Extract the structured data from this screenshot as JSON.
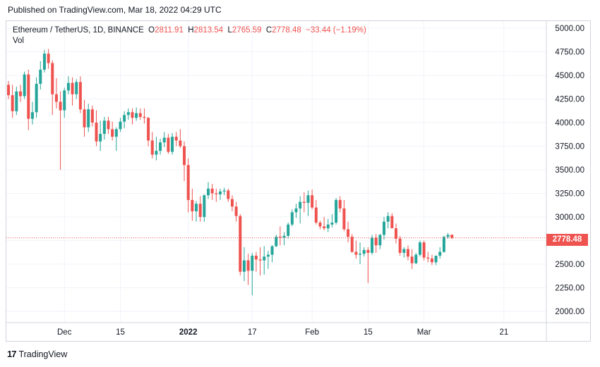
{
  "header": {
    "published": "Published on TradingView.com, Mar 18, 2022 04:29 UTC"
  },
  "legend": {
    "symbol": "Ethereum / TetherUS, 1D, BINANCE",
    "open_label": "O",
    "open": "2811.91",
    "high_label": "H",
    "high": "2813.54",
    "low_label": "L",
    "low": "2765.59",
    "close_label": "C",
    "close": "2778.48",
    "change": "−33.44 (−1.19%)",
    "vol_label": "Vol"
  },
  "last_price_tag": "2778.48",
  "footer": {
    "brand_icon": "17",
    "brand": "TradingView"
  },
  "colors": {
    "up": "#26a69a",
    "down": "#ef5350",
    "grid": "#f0f3fa",
    "axis": "#d1d4dc"
  },
  "chart_data": {
    "type": "candlestick",
    "title": "Ethereum / TetherUS, 1D, BINANCE",
    "ylim": [
      1750,
      5100
    ],
    "y_ticks": [
      "5000.00",
      "4750.00",
      "4500.00",
      "4250.00",
      "4000.00",
      "3750.00",
      "3500.00",
      "3250.00",
      "3000.00",
      "2750.00",
      "2500.00",
      "2250.00",
      "2000.00"
    ],
    "x_ticks": [
      {
        "label": "Dec",
        "index": 14
      },
      {
        "label": "15",
        "index": 28
      },
      {
        "label": "2022",
        "index": 45
      },
      {
        "label": "17",
        "index": 61
      },
      {
        "label": "Feb",
        "index": 76
      },
      {
        "label": "15",
        "index": 90
      },
      {
        "label": "Mar",
        "index": 104
      },
      {
        "label": "21",
        "index": 124
      }
    ],
    "last_price": 2778.48,
    "candles": [
      [
        4400,
        4440,
        4250,
        4290
      ],
      [
        4290,
        4400,
        4050,
        4120
      ],
      [
        4120,
        4380,
        4080,
        4330
      ],
      [
        4330,
        4400,
        4220,
        4280
      ],
      [
        4280,
        4540,
        4250,
        4510
      ],
      [
        4510,
        4560,
        3920,
        4040
      ],
      [
        4040,
        4220,
        3980,
        4110
      ],
      [
        4110,
        4480,
        4050,
        4410
      ],
      [
        4410,
        4650,
        4350,
        4560
      ],
      [
        4560,
        4770,
        4530,
        4730
      ],
      [
        4730,
        4780,
        4570,
        4630
      ],
      [
        4630,
        4660,
        4080,
        4300
      ],
      [
        4300,
        4470,
        4150,
        4220
      ],
      [
        4220,
        4330,
        3500,
        4130
      ],
      [
        4130,
        4370,
        4050,
        4340
      ],
      [
        4340,
        4490,
        4300,
        4420
      ],
      [
        4420,
        4480,
        4180,
        4300
      ],
      [
        4300,
        4460,
        4250,
        4430
      ],
      [
        4430,
        4490,
        4100,
        4140
      ],
      [
        4140,
        4240,
        3850,
        3950
      ],
      [
        3950,
        4200,
        3900,
        4140
      ],
      [
        4140,
        4180,
        3960,
        4000
      ],
      [
        4000,
        4130,
        3750,
        3800
      ],
      [
        3800,
        4020,
        3700,
        3880
      ],
      [
        3880,
        4060,
        3820,
        4020
      ],
      [
        4020,
        4060,
        3880,
        3930
      ],
      [
        3930,
        4010,
        3810,
        3850
      ],
      [
        3850,
        3950,
        3700,
        3930
      ],
      [
        3930,
        4050,
        3900,
        4010
      ],
      [
        4010,
        4120,
        3940,
        4080
      ],
      [
        4080,
        4150,
        4030,
        4110
      ],
      [
        4110,
        4150,
        3980,
        4050
      ],
      [
        4050,
        4160,
        4020,
        4100
      ],
      [
        4100,
        4150,
        4030,
        4060
      ],
      [
        4060,
        4150,
        3990,
        4050
      ],
      [
        4050,
        4060,
        3750,
        3810
      ],
      [
        3810,
        3900,
        3620,
        3660
      ],
      [
        3660,
        3850,
        3600,
        3700
      ],
      [
        3700,
        3830,
        3660,
        3790
      ],
      [
        3790,
        3900,
        3740,
        3840
      ],
      [
        3840,
        3880,
        3670,
        3690
      ],
      [
        3690,
        3890,
        3660,
        3850
      ],
      [
        3850,
        3900,
        3750,
        3810
      ],
      [
        3810,
        3930,
        3730,
        3750
      ],
      [
        3750,
        3800,
        3380,
        3550
      ],
      [
        3550,
        3620,
        3050,
        3180
      ],
      [
        3180,
        3300,
        2960,
        3060
      ],
      [
        3060,
        3170,
        2950,
        3140
      ],
      [
        3140,
        3220,
        2950,
        3000
      ],
      [
        3000,
        3240,
        2950,
        3230
      ],
      [
        3230,
        3370,
        3190,
        3300
      ],
      [
        3300,
        3350,
        3180,
        3250
      ],
      [
        3250,
        3300,
        3160,
        3240
      ],
      [
        3240,
        3300,
        3180,
        3270
      ],
      [
        3270,
        3310,
        3230,
        3280
      ],
      [
        3280,
        3300,
        3160,
        3190
      ],
      [
        3190,
        3230,
        3060,
        3110
      ],
      [
        3110,
        3160,
        2950,
        3010
      ],
      [
        3010,
        3030,
        2380,
        2420
      ],
      [
        2420,
        2680,
        2320,
        2540
      ],
      [
        2540,
        2610,
        2280,
        2430
      ],
      [
        2430,
        2620,
        2170,
        2590
      ],
      [
        2590,
        2630,
        2420,
        2550
      ],
      [
        2550,
        2680,
        2380,
        2540
      ],
      [
        2540,
        2690,
        2390,
        2580
      ],
      [
        2580,
        2640,
        2450,
        2600
      ],
      [
        2600,
        2700,
        2520,
        2690
      ],
      [
        2690,
        2810,
        2680,
        2790
      ],
      [
        2790,
        2900,
        2700,
        2780
      ],
      [
        2780,
        2840,
        2700,
        2800
      ],
      [
        2800,
        2940,
        2770,
        2920
      ],
      [
        2920,
        3080,
        2900,
        3050
      ],
      [
        3050,
        3140,
        2990,
        3090
      ],
      [
        3090,
        3220,
        2930,
        3160
      ],
      [
        3160,
        3260,
        3050,
        3150
      ],
      [
        3150,
        3280,
        3010,
        3230
      ],
      [
        3230,
        3290,
        3080,
        3100
      ],
      [
        3100,
        3180,
        2920,
        2940
      ],
      [
        2940,
        2960,
        2870,
        2900
      ],
      [
        2900,
        3000,
        2860,
        2880
      ],
      [
        2880,
        2980,
        2840,
        2920
      ],
      [
        2920,
        3030,
        2890,
        2940
      ],
      [
        2940,
        3200,
        2920,
        3180
      ],
      [
        3180,
        3220,
        3050,
        3090
      ],
      [
        3090,
        3180,
        2850,
        2870
      ],
      [
        2870,
        2950,
        2730,
        2790
      ],
      [
        2790,
        2820,
        2620,
        2630
      ],
      [
        2630,
        2750,
        2560,
        2600
      ],
      [
        2600,
        2730,
        2500,
        2610
      ],
      [
        2610,
        2680,
        2580,
        2650
      ],
      [
        2650,
        2680,
        2300,
        2620
      ],
      [
        2620,
        2810,
        2600,
        2780
      ],
      [
        2780,
        2820,
        2620,
        2700
      ],
      [
        2700,
        2820,
        2660,
        2810
      ],
      [
        2810,
        3000,
        2760,
        2950
      ],
      [
        2950,
        3050,
        2880,
        3010
      ],
      [
        3010,
        3040,
        2900,
        2880
      ],
      [
        2880,
        2930,
        2720,
        2770
      ],
      [
        2770,
        2800,
        2590,
        2620
      ],
      [
        2620,
        2680,
        2570,
        2660
      ],
      [
        2660,
        2700,
        2540,
        2580
      ],
      [
        2580,
        2660,
        2450,
        2510
      ],
      [
        2510,
        2620,
        2500,
        2600
      ],
      [
        2600,
        2750,
        2580,
        2730
      ],
      [
        2730,
        2750,
        2540,
        2570
      ],
      [
        2570,
        2630,
        2520,
        2560
      ],
      [
        2560,
        2600,
        2490,
        2520
      ],
      [
        2520,
        2590,
        2490,
        2590
      ],
      [
        2590,
        2680,
        2560,
        2630
      ],
      [
        2630,
        2800,
        2620,
        2790
      ],
      [
        2790,
        2830,
        2770,
        2810
      ],
      [
        2811.91,
        2813.54,
        2765.59,
        2778.48
      ]
    ]
  }
}
